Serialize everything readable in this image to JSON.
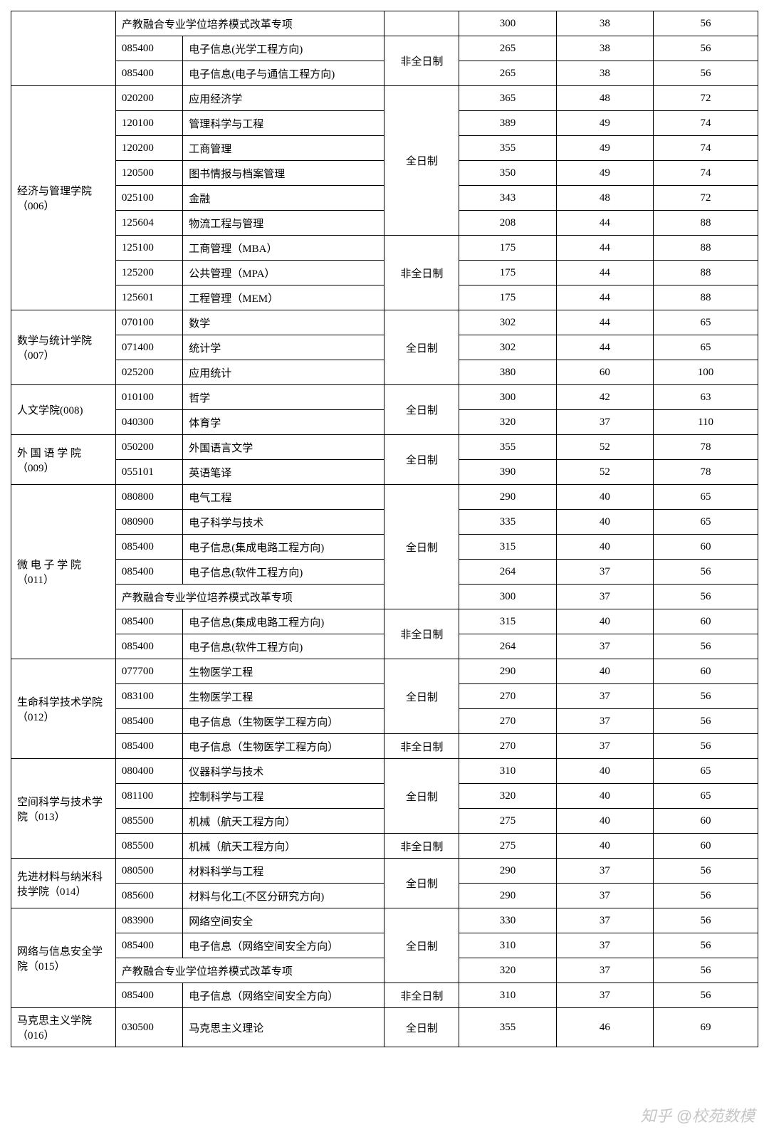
{
  "watermark": "知乎 @校苑数模",
  "mode_full": "全日制",
  "mode_part": "非全日制",
  "special_row": "产教融合专业学位培养模式改革专项",
  "departments": [
    {
      "name": "",
      "groups": [
        {
          "mode": "",
          "rows": [
            {
              "code": "",
              "major": "产教融合专业学位培养模式改革专项",
              "n1": "300",
              "n2": "38",
              "n3": "56",
              "span_code_major": true
            }
          ]
        },
        {
          "mode": "非全日制",
          "rows": [
            {
              "code": "085400",
              "major": "电子信息(光学工程方向)",
              "n1": "265",
              "n2": "38",
              "n3": "56"
            },
            {
              "code": "085400",
              "major": "电子信息(电子与通信工程方向)",
              "n1": "265",
              "n2": "38",
              "n3": "56"
            }
          ]
        }
      ]
    },
    {
      "name": "经济与管理学院（006）",
      "groups": [
        {
          "mode": "全日制",
          "rows": [
            {
              "code": "020200",
              "major": "应用经济学",
              "n1": "365",
              "n2": "48",
              "n3": "72"
            },
            {
              "code": "120100",
              "major": "管理科学与工程",
              "n1": "389",
              "n2": "49",
              "n3": "74"
            },
            {
              "code": "120200",
              "major": "工商管理",
              "n1": "355",
              "n2": "49",
              "n3": "74"
            },
            {
              "code": "120500",
              "major": "图书情报与档案管理",
              "n1": "350",
              "n2": "49",
              "n3": "74"
            },
            {
              "code": "025100",
              "major": "金融",
              "n1": "343",
              "n2": "48",
              "n3": "72"
            },
            {
              "code": "125604",
              "major": "物流工程与管理",
              "n1": "208",
              "n2": "44",
              "n3": "88"
            }
          ]
        },
        {
          "mode": "非全日制",
          "rows": [
            {
              "code": "125100",
              "major": "工商管理（MBA）",
              "n1": "175",
              "n2": "44",
              "n3": "88"
            },
            {
              "code": "125200",
              "major": "公共管理（MPA）",
              "n1": "175",
              "n2": "44",
              "n3": "88"
            },
            {
              "code": "125601",
              "major": "工程管理（MEM）",
              "n1": "175",
              "n2": "44",
              "n3": "88"
            }
          ]
        }
      ]
    },
    {
      "name": "数学与统计学院（007）",
      "groups": [
        {
          "mode": "全日制",
          "rows": [
            {
              "code": "070100",
              "major": "数学",
              "n1": "302",
              "n2": "44",
              "n3": "65"
            },
            {
              "code": "071400",
              "major": "统计学",
              "n1": "302",
              "n2": "44",
              "n3": "65"
            },
            {
              "code": "025200",
              "major": "应用统计",
              "n1": "380",
              "n2": "60",
              "n3": "100"
            }
          ]
        }
      ]
    },
    {
      "name": "人文学院(008)",
      "groups": [
        {
          "mode": "全日制",
          "rows": [
            {
              "code": "010100",
              "major": "哲学",
              "n1": "300",
              "n2": "42",
              "n3": "63"
            },
            {
              "code": "040300",
              "major": "体育学",
              "n1": "320",
              "n2": "37",
              "n3": "110"
            }
          ]
        }
      ]
    },
    {
      "name": "外 国 语 学 院（009）",
      "groups": [
        {
          "mode": "全日制",
          "rows": [
            {
              "code": "050200",
              "major": "外国语言文学",
              "n1": "355",
              "n2": "52",
              "n3": "78"
            },
            {
              "code": "055101",
              "major": "英语笔译",
              "n1": "390",
              "n2": "52",
              "n3": "78"
            }
          ]
        }
      ]
    },
    {
      "name": "微 电 子 学 院（011）",
      "groups": [
        {
          "mode": "全日制",
          "rows": [
            {
              "code": "080800",
              "major": "电气工程",
              "n1": "290",
              "n2": "40",
              "n3": "65"
            },
            {
              "code": "080900",
              "major": "电子科学与技术",
              "n1": "335",
              "n2": "40",
              "n3": "65"
            },
            {
              "code": "085400",
              "major": "电子信息(集成电路工程方向)",
              "n1": "315",
              "n2": "40",
              "n3": "60"
            },
            {
              "code": "085400",
              "major": "电子信息(软件工程方向)",
              "n1": "264",
              "n2": "37",
              "n3": "56"
            },
            {
              "code": "",
              "major": "产教融合专业学位培养模式改革专项",
              "n1": "300",
              "n2": "37",
              "n3": "56",
              "span_code_major": true
            }
          ]
        },
        {
          "mode": "非全日制",
          "rows": [
            {
              "code": "085400",
              "major": "电子信息(集成电路工程方向)",
              "n1": "315",
              "n2": "40",
              "n3": "60"
            },
            {
              "code": "085400",
              "major": "电子信息(软件工程方向)",
              "n1": "264",
              "n2": "37",
              "n3": "56"
            }
          ]
        }
      ]
    },
    {
      "name": "生命科学技术学院（012）",
      "groups": [
        {
          "mode": "全日制",
          "rows": [
            {
              "code": "077700",
              "major": "生物医学工程",
              "n1": "290",
              "n2": "40",
              "n3": "60"
            },
            {
              "code": "083100",
              "major": "生物医学工程",
              "n1": "270",
              "n2": "37",
              "n3": "56"
            },
            {
              "code": "085400",
              "major": "电子信息（生物医学工程方向）",
              "n1": "270",
              "n2": "37",
              "n3": "56"
            }
          ]
        },
        {
          "mode": "非全日制",
          "rows": [
            {
              "code": "085400",
              "major": "电子信息（生物医学工程方向）",
              "n1": "270",
              "n2": "37",
              "n3": "56"
            }
          ]
        }
      ]
    },
    {
      "name": "空间科学与技术学院（013）",
      "groups": [
        {
          "mode": "全日制",
          "rows": [
            {
              "code": "080400",
              "major": "仪器科学与技术",
              "n1": "310",
              "n2": "40",
              "n3": "65"
            },
            {
              "code": "081100",
              "major": "控制科学与工程",
              "n1": "320",
              "n2": "40",
              "n3": "65"
            },
            {
              "code": "085500",
              "major": "机械（航天工程方向）",
              "n1": "275",
              "n2": "40",
              "n3": "60"
            }
          ]
        },
        {
          "mode": "非全日制",
          "rows": [
            {
              "code": "085500",
              "major": "机械（航天工程方向）",
              "n1": "275",
              "n2": "40",
              "n3": "60"
            }
          ]
        }
      ]
    },
    {
      "name": "先进材料与纳米科技学院（014）",
      "groups": [
        {
          "mode": "全日制",
          "rows": [
            {
              "code": "080500",
              "major": "材料科学与工程",
              "n1": "290",
              "n2": "37",
              "n3": "56"
            },
            {
              "code": "085600",
              "major": "材料与化工(不区分研究方向)",
              "n1": "290",
              "n2": "37",
              "n3": "56"
            }
          ]
        }
      ]
    },
    {
      "name": "网络与信息安全学院（015）",
      "groups": [
        {
          "mode": "全日制",
          "rows": [
            {
              "code": "083900",
              "major": "网络空间安全",
              "n1": "330",
              "n2": "37",
              "n3": "56"
            },
            {
              "code": "085400",
              "major": "电子信息（网络空间安全方向）",
              "n1": "310",
              "n2": "37",
              "n3": "56"
            },
            {
              "code": "",
              "major": "产教融合专业学位培养模式改革专项",
              "n1": "320",
              "n2": "37",
              "n3": "56",
              "span_code_major": true
            }
          ]
        },
        {
          "mode": "非全日制",
          "rows": [
            {
              "code": "085400",
              "major": "电子信息（网络空间安全方向）",
              "n1": "310",
              "n2": "37",
              "n3": "56"
            }
          ]
        }
      ]
    },
    {
      "name": "马克思主义学院（016）",
      "groups": [
        {
          "mode": "全日制",
          "rows": [
            {
              "code": "030500",
              "major": "马克思主义理论",
              "n1": "355",
              "n2": "46",
              "n3": "69"
            }
          ]
        }
      ]
    }
  ]
}
